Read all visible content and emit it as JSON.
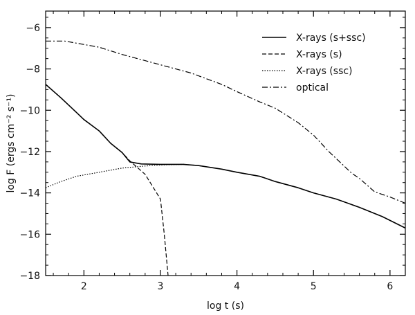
{
  "chart_data": {
    "type": "line",
    "xlabel": "log t (s)",
    "ylabel": "log F (ergs cm⁻² s⁻¹)",
    "xlim": [
      1.5,
      6.2
    ],
    "ylim": [
      -18,
      -5.2
    ],
    "x_ticks": [
      2,
      3,
      4,
      5,
      6
    ],
    "y_ticks": [
      -18,
      -16,
      -14,
      -12,
      -10,
      -8,
      -6
    ],
    "grid": false,
    "legend_position": "top-right",
    "series": [
      {
        "name": "X-rays (s+ssc)",
        "style": "solid",
        "points": [
          [
            1.5,
            -8.75
          ],
          [
            1.7,
            -9.4
          ],
          [
            1.9,
            -10.1
          ],
          [
            2.0,
            -10.45
          ],
          [
            2.2,
            -11.0
          ],
          [
            2.35,
            -11.6
          ],
          [
            2.5,
            -12.05
          ],
          [
            2.6,
            -12.5
          ],
          [
            2.75,
            -12.6
          ],
          [
            3.0,
            -12.62
          ],
          [
            3.3,
            -12.62
          ],
          [
            3.5,
            -12.68
          ],
          [
            3.8,
            -12.85
          ],
          [
            4.0,
            -13.0
          ],
          [
            4.3,
            -13.2
          ],
          [
            4.5,
            -13.45
          ],
          [
            4.8,
            -13.75
          ],
          [
            5.0,
            -14.0
          ],
          [
            5.3,
            -14.3
          ],
          [
            5.6,
            -14.7
          ],
          [
            5.9,
            -15.15
          ],
          [
            6.2,
            -15.7
          ]
        ]
      },
      {
        "name": "X-rays (s)",
        "style": "dashed",
        "points": [
          [
            1.5,
            -8.75
          ],
          [
            1.7,
            -9.4
          ],
          [
            1.9,
            -10.1
          ],
          [
            2.0,
            -10.45
          ],
          [
            2.2,
            -11.0
          ],
          [
            2.35,
            -11.6
          ],
          [
            2.5,
            -12.05
          ],
          [
            2.6,
            -12.45
          ],
          [
            2.8,
            -13.1
          ],
          [
            3.0,
            -14.3
          ],
          [
            3.05,
            -16.0
          ],
          [
            3.1,
            -18.0
          ]
        ]
      },
      {
        "name": "X-rays (ssc)",
        "style": "dotted",
        "points": [
          [
            1.5,
            -13.75
          ],
          [
            1.7,
            -13.45
          ],
          [
            1.9,
            -13.2
          ],
          [
            2.2,
            -13.0
          ],
          [
            2.5,
            -12.8
          ],
          [
            2.8,
            -12.7
          ],
          [
            3.0,
            -12.65
          ],
          [
            3.3,
            -12.62
          ],
          [
            3.5,
            -12.68
          ],
          [
            3.8,
            -12.85
          ],
          [
            4.0,
            -13.0
          ],
          [
            4.3,
            -13.2
          ],
          [
            4.5,
            -13.45
          ],
          [
            4.8,
            -13.75
          ],
          [
            5.0,
            -14.0
          ],
          [
            5.3,
            -14.3
          ],
          [
            5.6,
            -14.7
          ],
          [
            5.9,
            -15.15
          ],
          [
            6.2,
            -15.7
          ]
        ]
      },
      {
        "name": "optical",
        "style": "dashdot",
        "points": [
          [
            1.5,
            -6.65
          ],
          [
            1.75,
            -6.65
          ],
          [
            1.9,
            -6.75
          ],
          [
            2.2,
            -6.95
          ],
          [
            2.5,
            -7.3
          ],
          [
            2.8,
            -7.6
          ],
          [
            3.0,
            -7.8
          ],
          [
            3.4,
            -8.2
          ],
          [
            3.8,
            -8.75
          ],
          [
            4.0,
            -9.1
          ],
          [
            4.3,
            -9.6
          ],
          [
            4.5,
            -9.9
          ],
          [
            4.8,
            -10.6
          ],
          [
            5.0,
            -11.2
          ],
          [
            5.2,
            -12.0
          ],
          [
            5.5,
            -13.05
          ],
          [
            5.6,
            -13.3
          ],
          [
            5.8,
            -13.95
          ],
          [
            6.0,
            -14.2
          ],
          [
            6.2,
            -14.5
          ]
        ]
      }
    ]
  },
  "colors": {
    "background": "#ffffff",
    "axis": "#000000",
    "lines": "#000000"
  }
}
